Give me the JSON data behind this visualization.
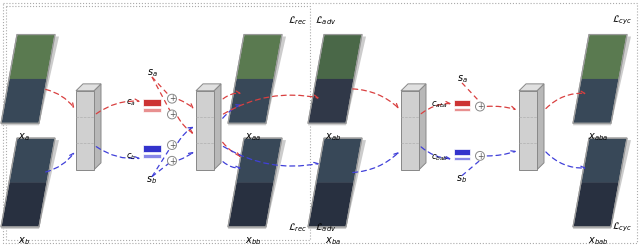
{
  "fig_width": 6.4,
  "fig_height": 2.49,
  "dpi": 100,
  "bg_color": "#ffffff",
  "red": "#d94040",
  "blue": "#4040d9",
  "pink": "#e89090",
  "lblue": "#9090e8",
  "dark_red": "#c03030",
  "dark_blue": "#3030c0",
  "enc_face": "#d0d0d0",
  "enc_top": "#e8e8e8",
  "enc_right": "#b8b8b8",
  "enc_edge": "#888888",
  "img_top_a": "#5a7a50",
  "img_bot_a": "#384858",
  "img_top_b": "#384858",
  "img_bot_b": "#283040",
  "img_top_ab": "#4a6848",
  "img_bot_ab": "#303848",
  "dot_gray": "#aaaaaa",
  "labels": {
    "xa": "$x_a$",
    "xb": "$x_b$",
    "xaa": "$x_{aa}$",
    "xbb": "$x_{bb}$",
    "xab": "$x_{ab}$",
    "xba": "$x_{ba}$",
    "xaba": "$x_{aba}$",
    "xbab": "$x_{bab}$",
    "sa1": "$s_a$",
    "sb1": "$s_b$",
    "sa2": "$s_a$",
    "sb2": "$s_b$",
    "ca": "$c_a$",
    "cb": "$c_b$",
    "caba": "$c_{aba}$",
    "cbab": "$c_{bab}$",
    "Lrec_top": "$\\mathcal{L}_{rec}$",
    "Lrec_bot": "$\\mathcal{L}_{rec}$",
    "Ladv_top": "$\\mathcal{L}_{adv}$",
    "Ladv_bot": "$\\mathcal{L}_{adv}$",
    "Lcyc_top": "$\\mathcal{L}_{cyc}$",
    "Lcyc_bot": "$\\mathcal{L}_{cyc}$"
  }
}
